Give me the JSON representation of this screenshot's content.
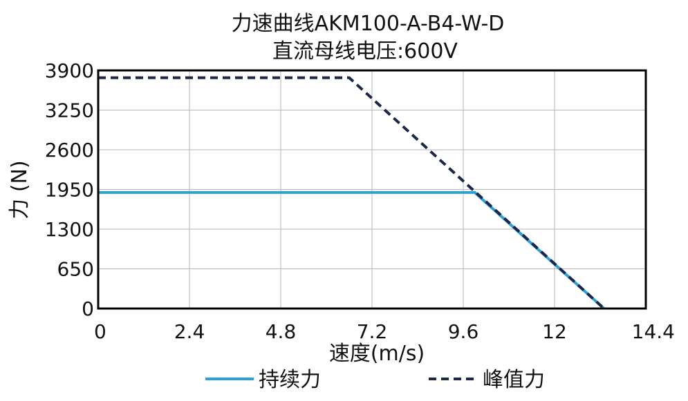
{
  "chart_data": {
    "type": "line",
    "title": "力速曲线AKM100-A-B4-W-D",
    "subtitle": "直流母线电压:600V",
    "xlabel": "速度(m/s)",
    "ylabel": "力 (N)",
    "xlim": [
      0,
      14.4
    ],
    "ylim": [
      0,
      3900
    ],
    "x_ticks": [
      "0",
      "2.4",
      "4.8",
      "7.2",
      "9.6",
      "12",
      "14.4"
    ],
    "y_ticks": [
      "0",
      "650",
      "1300",
      "1950",
      "2600",
      "3250",
      "3900"
    ],
    "grid": true,
    "legend_position": "bottom",
    "series": [
      {
        "name": "持续力",
        "color": "#2f9fd8",
        "style": "solid",
        "points": [
          [
            0,
            1900
          ],
          [
            9.9,
            1900
          ],
          [
            13.3,
            0
          ]
        ]
      },
      {
        "name": "峰值力",
        "color": "#1b2747",
        "style": "dashed",
        "points": [
          [
            0,
            3780
          ],
          [
            6.6,
            3780
          ],
          [
            13.3,
            0
          ]
        ]
      }
    ]
  }
}
